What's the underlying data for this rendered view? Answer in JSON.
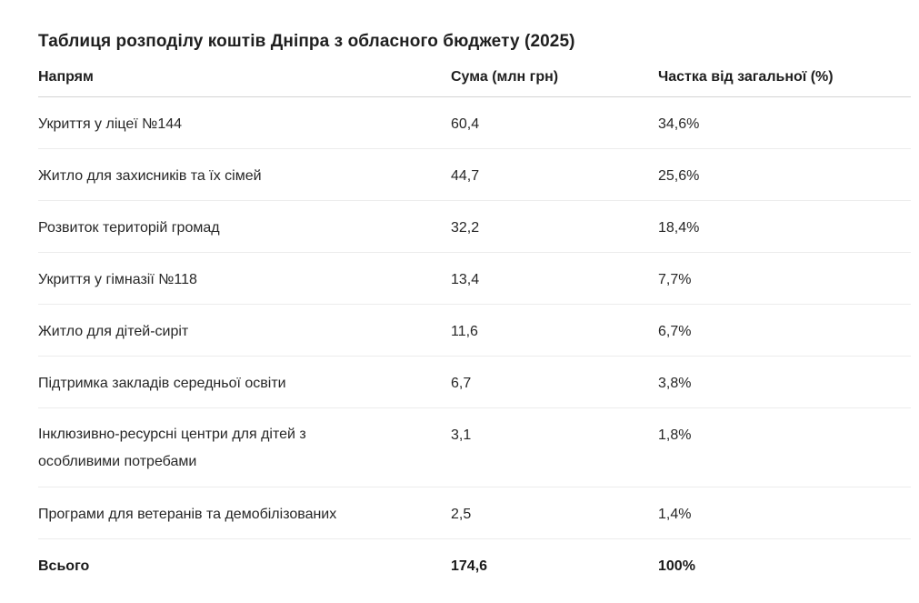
{
  "title": "Таблиця розподілу коштів Дніпра з обласного бюджету (2025)",
  "table": {
    "headers": [
      "Напрям",
      "Сума (млн грн)",
      "Частка від загальної (%)"
    ],
    "rows": [
      {
        "direction": "Укриття у ліцеї №144",
        "amount": "60,4",
        "share": "34,6%"
      },
      {
        "direction": "Житло для захисників та їх сімей",
        "amount": "44,7",
        "share": "25,6%"
      },
      {
        "direction": "Розвиток територій громад",
        "amount": "32,2",
        "share": "18,4%"
      },
      {
        "direction": "Укриття у гімназії №118",
        "amount": "13,4",
        "share": "7,7%"
      },
      {
        "direction": "Житло для дітей-сиріт",
        "amount": "11,6",
        "share": "6,7%"
      },
      {
        "direction": "Підтримка закладів середньої освіти",
        "amount": "6,7",
        "share": "3,8%"
      },
      {
        "direction": "Інклюзивно-ресурсні центри для дітей з особливими потребами",
        "amount": "3,1",
        "share": "1,8%"
      },
      {
        "direction": "Програми для ветеранів та демобілізованих",
        "amount": "2,5",
        "share": "1,4%"
      }
    ],
    "total": {
      "direction": "Всього",
      "amount": "174,6",
      "share": "100%"
    }
  }
}
